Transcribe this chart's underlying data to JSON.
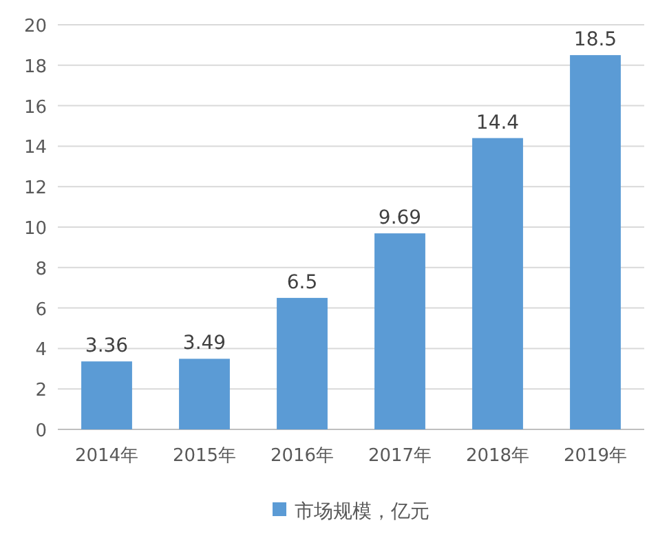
{
  "chart_data": {
    "type": "bar",
    "categories": [
      "2014年",
      "2015年",
      "2016年",
      "2017年",
      "2018年",
      "2019年"
    ],
    "series": [
      {
        "name": "市场规模，亿元",
        "color": "#5b9bd5",
        "values": [
          3.36,
          3.49,
          6.5,
          9.69,
          14.4,
          18.5
        ]
      }
    ],
    "ylim": [
      0,
      20
    ],
    "yticks": [
      0,
      2,
      4,
      6,
      8,
      10,
      12,
      14,
      16,
      18,
      20
    ],
    "grid": "y",
    "data_labels": true,
    "legend": "bottom"
  }
}
